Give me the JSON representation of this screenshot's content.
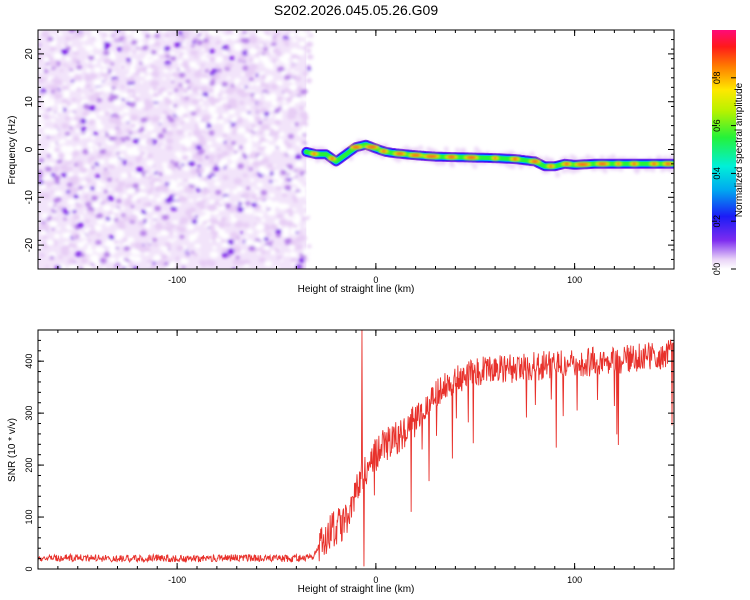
{
  "title": "S202.2026.045.05.26.G09",
  "chart_data": [
    {
      "type": "heatmap",
      "title": "S202.2026.045.05.26.G09",
      "xlabel": "Height of straight line (km)",
      "ylabel": "Frequency (Hz)",
      "xlim": [
        -170,
        150
      ],
      "ylim": [
        -25,
        25
      ],
      "xticks": [
        -100,
        0,
        100
      ],
      "yticks": [
        -20,
        -10,
        0,
        10,
        20
      ],
      "noise_region_x": [
        -170,
        -35
      ],
      "signal_ridge": {
        "x": [
          -35,
          -30,
          -25,
          -20,
          -15,
          -10,
          -5,
          0,
          5,
          10,
          15,
          20,
          30,
          40,
          50,
          60,
          70,
          80,
          85,
          90,
          95,
          100,
          110,
          120,
          130,
          140,
          150
        ],
        "freq": [
          -0.5,
          -1.0,
          -1.0,
          -2.5,
          -1.0,
          0.5,
          1.0,
          0.2,
          -0.5,
          -0.8,
          -1.0,
          -1.2,
          -1.5,
          -1.6,
          -1.7,
          -1.8,
          -2.0,
          -2.5,
          -3.5,
          -3.5,
          -3.0,
          -3.2,
          -3.0,
          -3.0,
          -3.0,
          -3.0,
          -3.0
        ]
      },
      "colorbar": {
        "label": "Normalized spectral amplitude",
        "range": [
          0,
          1
        ],
        "ticks": [
          "0.0",
          "0.2",
          "0.4",
          "0.6",
          "0.8"
        ]
      }
    },
    {
      "type": "line",
      "xlabel": "Height of straight line (km)",
      "ylabel": "SNR (10 * v/v)",
      "xlim": [
        -170,
        150
      ],
      "ylim": [
        0,
        460
      ],
      "xticks": [
        -100,
        0,
        100
      ],
      "yticks": [
        0,
        100,
        200,
        300,
        400
      ],
      "series": [
        {
          "name": "SNR",
          "color": "#e8312b",
          "x": [
            -170,
            -150,
            -130,
            -110,
            -90,
            -70,
            -50,
            -40,
            -32,
            -28,
            -24,
            -20,
            -16,
            -12,
            -10,
            -8,
            -6,
            -4,
            -2,
            0,
            2,
            5,
            10,
            15,
            20,
            25,
            30,
            40,
            50,
            60,
            70,
            80,
            90,
            100,
            110,
            120,
            130,
            140,
            150
          ],
          "values": [
            20,
            22,
            20,
            21,
            20,
            22,
            20,
            21,
            22,
            45,
            70,
            80,
            90,
            120,
            140,
            170,
            185,
            190,
            210,
            220,
            230,
            240,
            250,
            270,
            285,
            310,
            340,
            365,
            380,
            385,
            385,
            390,
            395,
            395,
            400,
            400,
            405,
            410,
            415
          ]
        }
      ],
      "spikes": [
        {
          "x": -7,
          "value": 460
        },
        {
          "x": -6,
          "value": 5
        }
      ]
    }
  ],
  "colors": {
    "noise_light": "#e7cdf5",
    "noise_mid": "#b67ee8",
    "noise_dark": "#7b12e8",
    "line": "#e8312b"
  }
}
